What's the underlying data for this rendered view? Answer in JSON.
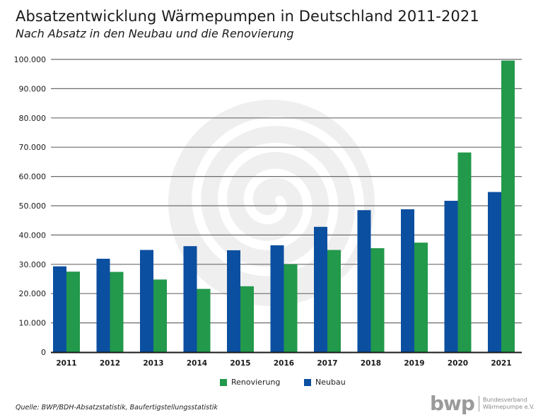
{
  "header": {
    "title": "Absatzentwicklung Wärmepumpen in Deutschland 2011-2021",
    "subtitle": "Nach Absatz in den Neubau und die Renovierung"
  },
  "chart_data": {
    "type": "bar",
    "title": "Absatzentwicklung Wärmepumpen in Deutschland 2011-2021",
    "subtitle": "Nach Absatz in den Neubau und die Renovierung",
    "xlabel": "",
    "ylabel": "",
    "categories": [
      "2011",
      "2012",
      "2013",
      "2014",
      "2015",
      "2016",
      "2017",
      "2018",
      "2019",
      "2020",
      "2021"
    ],
    "series": [
      {
        "name": "Neubau",
        "color": "#0b4fa0",
        "values": [
          29300,
          31900,
          34900,
          36200,
          34800,
          36500,
          42800,
          48500,
          48800,
          51700,
          54700
        ]
      },
      {
        "name": "Renovierung",
        "color": "#22994b",
        "values": [
          27500,
          27400,
          24800,
          21600,
          22500,
          30000,
          34900,
          35500,
          37400,
          68200,
          99600
        ]
      }
    ],
    "ylim": [
      0,
      100000
    ],
    "yticks": [
      0,
      10000,
      20000,
      30000,
      40000,
      50000,
      60000,
      70000,
      80000,
      90000,
      100000
    ],
    "ytick_labels": [
      "0",
      "10.000",
      "20.000",
      "30.000",
      "40.000",
      "50.000",
      "60.000",
      "70.000",
      "80.000",
      "90.000",
      "100.000"
    ],
    "grid": true,
    "legend": {
      "placement": "bottom-center",
      "entries": [
        {
          "name": "Renovierung",
          "color": "#22994b"
        },
        {
          "name": "Neubau",
          "color": "#0b4fa0"
        }
      ]
    }
  },
  "legend": {
    "renovierung": "Renovierung",
    "neubau": "Neubau",
    "renovierung_color": "#22994b",
    "neubau_color": "#0b4fa0"
  },
  "footer": {
    "source": "Quelle: BWP/BDH-Absatzstatistik, Baufertigstellungsstatistik",
    "logo_mark": "bwp",
    "logo_line1": "Bundesverband",
    "logo_line2": "Wärmepumpe e.V."
  }
}
